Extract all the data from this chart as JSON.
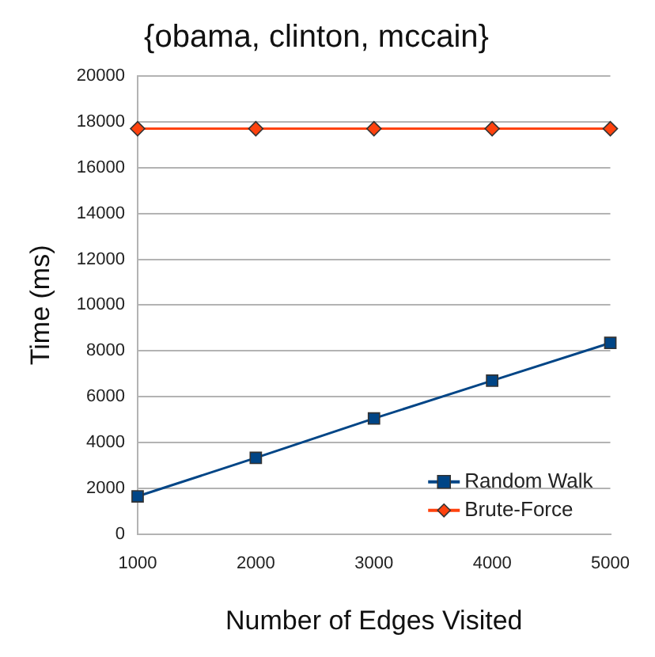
{
  "chart_data": {
    "type": "line",
    "title": "{obama, clinton, mccain}",
    "xlabel": "Number of Edges Visited",
    "ylabel": "Time (ms)",
    "x": [
      1000,
      2000,
      3000,
      4000,
      5000
    ],
    "series": [
      {
        "name": "Random Walk",
        "color": "#004586",
        "marker": "square",
        "values": [
          1650,
          3330,
          5050,
          6700,
          8350
        ]
      },
      {
        "name": "Brute-Force",
        "color": "#ff420e",
        "marker": "diamond",
        "values": [
          17700,
          17700,
          17700,
          17700,
          17700
        ]
      }
    ],
    "xlim": [
      1000,
      5000
    ],
    "xticks": [
      1000,
      2000,
      3000,
      4000,
      5000
    ],
    "ylim": [
      0,
      20000
    ],
    "yticks": [
      0,
      2000,
      4000,
      6000,
      8000,
      10000,
      12000,
      14000,
      16000,
      18000,
      20000
    ],
    "grid": "y",
    "legend": "bottom right"
  }
}
